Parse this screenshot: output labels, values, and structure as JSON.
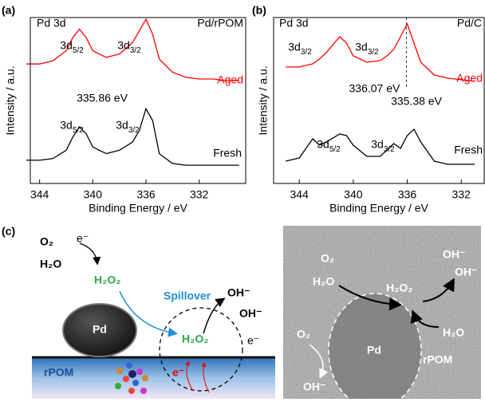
{
  "chart_data": [
    {
      "type": "line",
      "panel_label": "(a)",
      "title": "Pd 3d",
      "subtitle": "Pd/rPOM",
      "x_label": "Binding Energy / eV",
      "y_label": "Intensity / a.u.",
      "xlim": [
        344.7,
        328.5
      ],
      "xticks": [
        344,
        340,
        336,
        332
      ],
      "ylim": [
        0,
        100
      ],
      "x": [
        345,
        344,
        343,
        342,
        341.5,
        341,
        340.5,
        340,
        339,
        338,
        337,
        336.5,
        336,
        335.5,
        335,
        334,
        333,
        332,
        331,
        330,
        329
      ],
      "series": [
        {
          "name": "Aged",
          "color": "#ff0000",
          "values": [
            72,
            72,
            74,
            80,
            88,
            93,
            88,
            80,
            76,
            78,
            85,
            92,
            99,
            90,
            75,
            67,
            64,
            63,
            63,
            62,
            62
          ]
        },
        {
          "name": "Fresh",
          "color": "#000000",
          "values": [
            14,
            14,
            15,
            20,
            28,
            34,
            30,
            22,
            18,
            20,
            25,
            32,
            45,
            38,
            18,
            12,
            11,
            11,
            11,
            11,
            11
          ]
        }
      ],
      "annotations": [
        {
          "text": "3d",
          "sub": "5/2"
        },
        {
          "text": "3d",
          "sub": "3/2"
        },
        {
          "text": "335.86 eV"
        },
        {
          "text": "3d",
          "sub": "5/2"
        },
        {
          "text": "3d",
          "sub": "3/2"
        }
      ]
    },
    {
      "type": "line",
      "panel_label": "(b)",
      "title": "Pd 3d",
      "subtitle": "Pd/C",
      "x_label": "Binding Energy / eV",
      "y_label": "Intensity / a.u.",
      "xlim": [
        345.9,
        330.3
      ],
      "xticks": [
        344,
        340,
        336,
        332
      ],
      "ylim": [
        0,
        104
      ],
      "x": [
        345,
        344,
        343.5,
        343,
        342.5,
        342,
        341,
        340.5,
        340,
        339,
        338,
        337.5,
        337,
        336.5,
        336,
        335.5,
        335,
        334,
        333,
        332,
        331
      ],
      "series": [
        {
          "name": "Aged",
          "color": "#ff0000",
          "values": [
            73,
            73,
            74,
            75,
            78,
            82,
            92,
            88,
            80,
            76,
            77,
            80,
            84,
            92,
            100,
            88,
            76,
            68,
            66,
            65,
            64
          ]
        },
        {
          "name": "Fresh",
          "color": "#000000",
          "values": [
            14,
            16,
            22,
            28,
            24,
            26,
            31,
            30,
            24,
            17,
            17,
            21,
            25,
            22,
            30,
            34,
            26,
            14,
            12,
            12,
            12
          ]
        }
      ],
      "vline": {
        "value": 336.07,
        "label": "336.07 eV"
      },
      "annotations": [
        {
          "text": "3d",
          "sub": "3/2"
        },
        {
          "text": "3d",
          "sub": "3/2"
        },
        {
          "text": "335.38 eV"
        },
        {
          "text": "3d",
          "sub": "5/2"
        },
        {
          "text": "3d",
          "sub": "3/2"
        }
      ]
    }
  ],
  "panel_c": {
    "label": "(c)",
    "schematic_labels": [
      "O₂",
      "e⁻",
      "H₂O",
      "H₂O₂",
      "Spillover",
      "OH⁻",
      "OH⁻",
      "Pd",
      "H₂O₂",
      "e⁻",
      "e⁻",
      "rPOM"
    ],
    "tem_labels": [
      "O₂",
      "H₂O",
      "H₂O₂",
      "OH⁻",
      "OH⁻",
      "H₂O",
      "rPOM",
      "O₂",
      "Pd",
      "OH⁻"
    ]
  }
}
